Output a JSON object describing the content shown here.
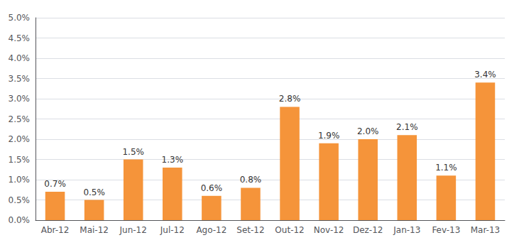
{
  "chart_data": {
    "type": "bar",
    "categories": [
      "Abr-12",
      "Mai-12",
      "Jun-12",
      "Jul-12",
      "Ago-12",
      "Set-12",
      "Out-12",
      "Nov-12",
      "Dez-12",
      "Jan-13",
      "Fev-13",
      "Mar-13"
    ],
    "values": [
      0.7,
      0.5,
      1.5,
      1.3,
      0.6,
      0.8,
      2.8,
      1.9,
      2.0,
      2.1,
      1.1,
      3.4
    ],
    "value_labels": [
      "0.7%",
      "0.5%",
      "1.5%",
      "1.3%",
      "0.6%",
      "0.8%",
      "2.8%",
      "1.9%",
      "2.0%",
      "2.1%",
      "1.1%",
      "3.4%"
    ],
    "data_labels": true,
    "color": "#F5943A",
    "ylim": [
      0,
      5.0
    ],
    "yticks": [
      {
        "value": 0.0,
        "label": "0.0%"
      },
      {
        "value": 0.5,
        "label": "0.5%"
      },
      {
        "value": 1.0,
        "label": "1.0%"
      },
      {
        "value": 1.5,
        "label": "1.5%"
      },
      {
        "value": 2.0,
        "label": "2.0%"
      },
      {
        "value": 2.5,
        "label": "2.5%"
      },
      {
        "value": 3.0,
        "label": "3.0%"
      },
      {
        "value": 3.5,
        "label": "3.5%"
      },
      {
        "value": 4.0,
        "label": "4.0%"
      },
      {
        "value": 4.5,
        "label": "4.5%"
      },
      {
        "value": 5.0,
        "label": "5.0%"
      }
    ],
    "grid": true
  }
}
